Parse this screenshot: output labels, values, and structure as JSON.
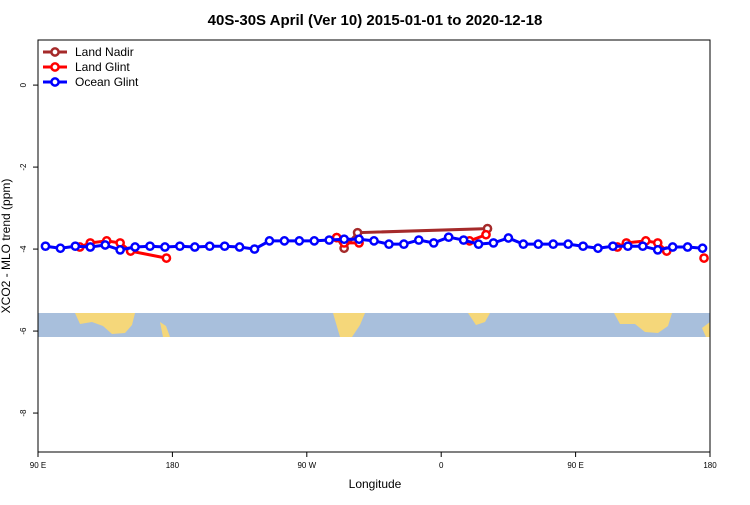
{
  "chart_data": {
    "type": "line",
    "title": "40S-30S April (Ver 10)   2015-01-01 to 2020-12-18",
    "x_label": "Longitude",
    "y_label": "XCO2 - MLO trend (ppm)",
    "xlim": [
      90,
      540
    ],
    "xticks": [
      {
        "value": 90,
        "label": "90 E"
      },
      {
        "value": 180,
        "label": "180"
      },
      {
        "value": 270,
        "label": "90 W"
      },
      {
        "value": 360,
        "label": "0"
      },
      {
        "value": 450,
        "label": "90 E"
      },
      {
        "value": 540,
        "label": "180"
      }
    ],
    "ylim": [
      -8.95,
      1.1
    ],
    "yticks": [
      0,
      -2,
      -4,
      -6,
      -8
    ],
    "legend": "top-left",
    "series": [
      {
        "name": "Land Nadir",
        "color": "#a52a2a",
        "x": [
          290,
          295,
          304,
          391
        ],
        "values": [
          -3.72,
          -3.98,
          -3.6,
          -3.5
        ]
      },
      {
        "name": "Land Glint",
        "color": "#ff0000",
        "x": [
          118,
          125,
          136,
          145,
          152,
          176,
          240,
          290,
          295,
          305,
          340,
          379,
          390,
          420,
          478,
          484,
          497,
          505,
          511,
          530,
          536
        ],
        "values": [
          -3.95,
          -3.85,
          -3.8,
          -3.85,
          -4.05,
          -4.22,
          null,
          -3.72,
          -3.85,
          -3.85,
          null,
          -3.8,
          -3.65,
          null,
          -3.95,
          -3.85,
          -3.8,
          -3.85,
          -4.05,
          null,
          -4.22
        ]
      },
      {
        "name": "Ocean Glint",
        "color": "#0000ff",
        "x": [
          95,
          105,
          115,
          125,
          135,
          145,
          155,
          165,
          175,
          185,
          195,
          205,
          215,
          225,
          235,
          245,
          255,
          265,
          275,
          285,
          295,
          305,
          315,
          325,
          335,
          345,
          355,
          365,
          375,
          385,
          395,
          405,
          415,
          425,
          435,
          445,
          455,
          465,
          475,
          485,
          495,
          505,
          515,
          525,
          535
        ],
        "values": [
          -3.93,
          -3.98,
          -3.93,
          -3.95,
          -3.9,
          -4.02,
          -3.95,
          -3.93,
          -3.95,
          -3.93,
          -3.95,
          -3.93,
          -3.93,
          -3.95,
          -4.0,
          -3.8,
          -3.8,
          -3.8,
          -3.8,
          -3.78,
          -3.76,
          -3.76,
          -3.8,
          -3.88,
          -3.88,
          -3.78,
          -3.85,
          -3.71,
          -3.78,
          -3.88,
          -3.85,
          -3.73,
          -3.88,
          -3.88,
          -3.88,
          -3.88,
          -3.93,
          -3.98,
          -3.93,
          -3.93,
          -3.93,
          -4.02,
          -3.95,
          -3.95,
          -3.98
        ]
      }
    ]
  }
}
